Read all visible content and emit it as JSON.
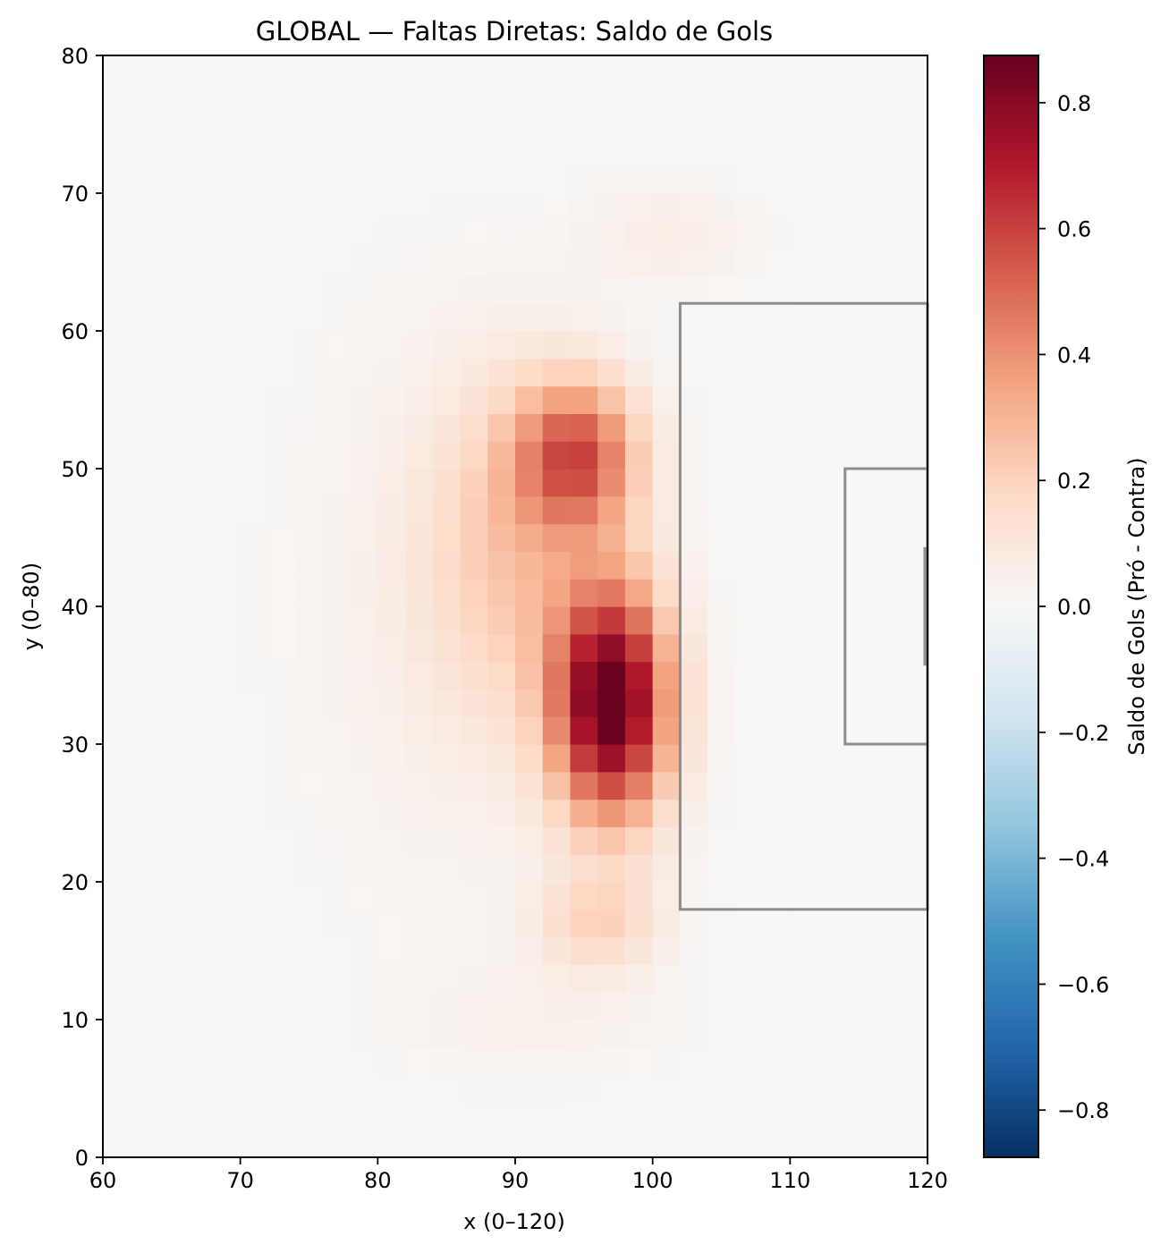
{
  "chart_data": {
    "type": "heatmap",
    "title": "GLOBAL — Faltas Diretas: Saldo de Gols",
    "xlabel": "x (0–120)",
    "ylabel": "y (0–80)",
    "xlim": [
      60,
      120
    ],
    "ylim": [
      0,
      80
    ],
    "x_ticks": [
      60,
      70,
      80,
      90,
      100,
      110,
      120
    ],
    "y_ticks": [
      0,
      10,
      20,
      30,
      40,
      50,
      60,
      70,
      80
    ],
    "grid": false,
    "colormap": "RdBu_r",
    "colorbar": {
      "label": "Saldo de Gols (Pró - Contra)",
      "range": [
        -0.875,
        0.875
      ],
      "ticks": [
        -0.8,
        -0.6,
        -0.4,
        -0.2,
        0.0,
        0.2,
        0.4,
        0.6,
        0.8
      ],
      "tick_labels": [
        "−0.8",
        "−0.6",
        "−0.4",
        "−0.2",
        "0.0",
        "0.2",
        "0.4",
        "0.6",
        "0.8"
      ]
    },
    "cell_size": 2,
    "field_description": "positive blob of goal difference centered near x=97, y=33 (peak about 0.87), elongated vertically from y=20 to y=58, with a faint halo extending from x=70 to x=112",
    "peak": {
      "x": 97,
      "y": 33,
      "value": 0.87
    },
    "penalty_area": {
      "x": [
        102,
        120
      ],
      "y": [
        18,
        62
      ]
    },
    "six_yard_box": {
      "x": [
        114,
        120
      ],
      "y": [
        30,
        50
      ]
    },
    "goal": {
      "x": 120,
      "y": [
        35.7,
        44.3
      ]
    }
  }
}
